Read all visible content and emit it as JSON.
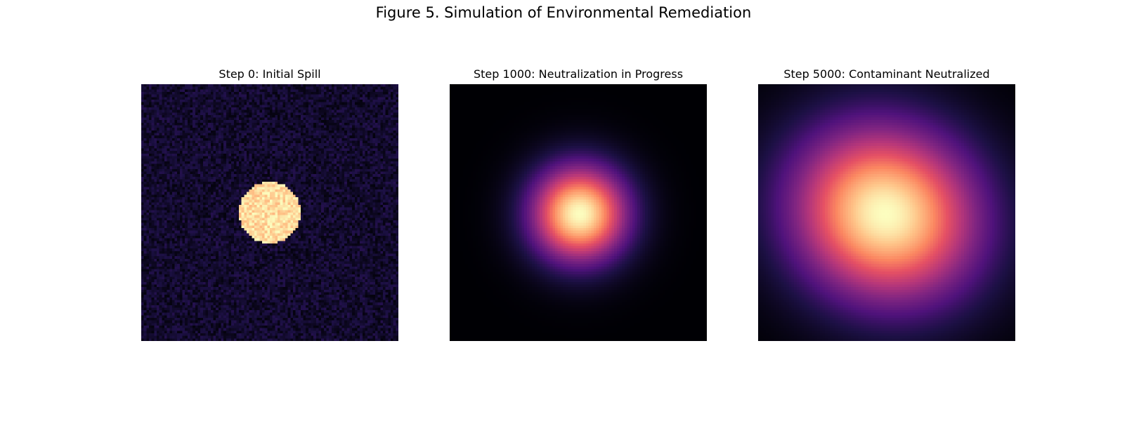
{
  "figure": {
    "title": "Figure 5. Simulation of Environmental Remediation"
  },
  "chart_data": [
    {
      "type": "heatmap",
      "title": "Step 0: Initial Spill",
      "colormap": "magma",
      "grid_size": 100,
      "field": "uniform disk of high concentration over noisy low background",
      "center": [
        50,
        50
      ],
      "axis": "off"
    },
    {
      "type": "heatmap",
      "title": "Step 1000: Neutralization in Progress",
      "colormap": "magma",
      "grid_size": 100,
      "field": "gaussian diffusion",
      "center": [
        50,
        50
      ],
      "axis": "off"
    },
    {
      "type": "heatmap",
      "title": "Step 5000: Contaminant Neutralized",
      "colormap": "magma",
      "grid_size": 100,
      "field": "broad gaussian diffusion",
      "center": [
        50,
        50
      ],
      "axis": "off"
    }
  ]
}
